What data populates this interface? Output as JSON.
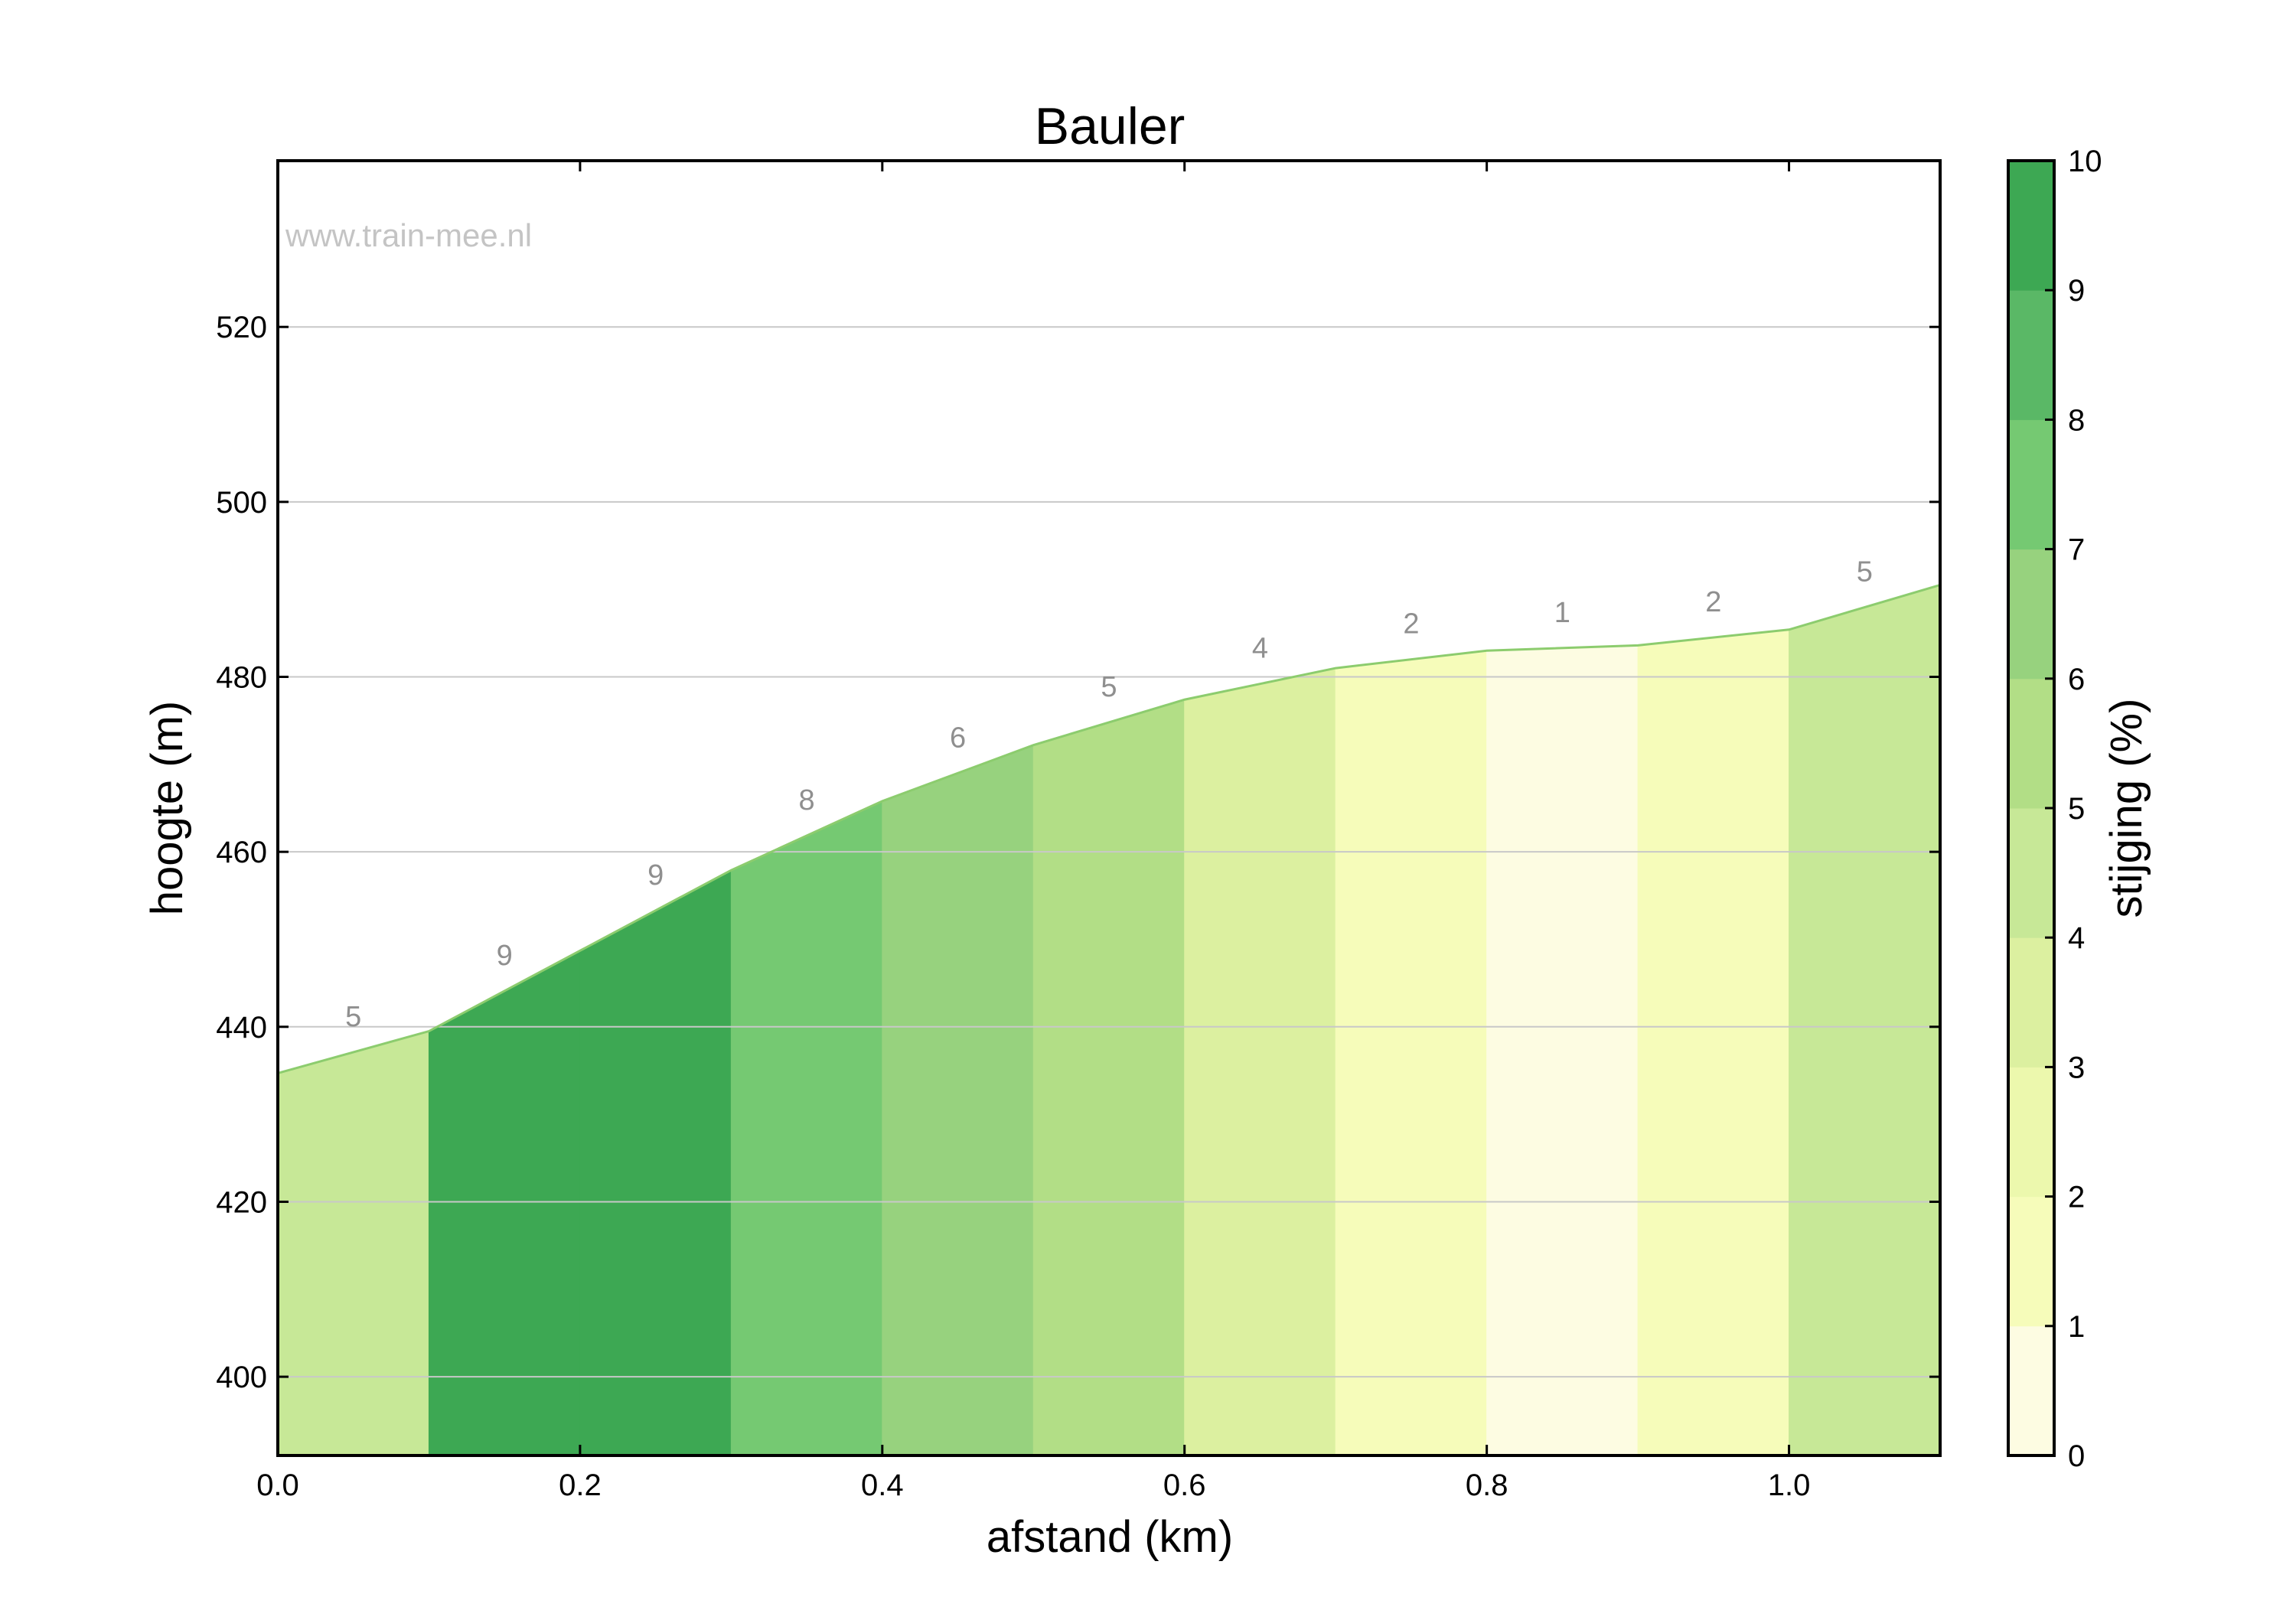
{
  "chart_data": {
    "type": "area",
    "title": "Bauler",
    "watermark": "www.train-mee.nl",
    "xlabel": "afstand (km)",
    "ylabel": "hoogte (m)",
    "xlim": [
      0.0,
      1.1
    ],
    "ylim": [
      391,
      539
    ],
    "xticks": [
      0.0,
      0.2,
      0.4,
      0.6,
      0.8,
      1.0
    ],
    "xtick_labels": [
      "0.0",
      "0.2",
      "0.4",
      "0.6",
      "0.8",
      "1.0"
    ],
    "yticks": [
      400,
      420,
      440,
      460,
      480,
      500,
      520
    ],
    "ytick_labels": [
      "400",
      "420",
      "440",
      "460",
      "480",
      "500",
      "520"
    ],
    "grid": "horizontal",
    "profile": {
      "x": [
        0.0,
        0.1,
        0.2,
        0.3,
        0.4,
        0.5,
        0.6,
        0.7,
        0.8,
        0.9,
        1.0,
        1.1
      ],
      "y": [
        434.7,
        439.5,
        448.7,
        457.9,
        465.8,
        472.2,
        477.4,
        481.0,
        483.0,
        483.6,
        485.4,
        490.5
      ]
    },
    "segments": [
      {
        "x0": 0.0,
        "x1": 0.1,
        "gradient": 5,
        "label": "5",
        "color": "#c7e897"
      },
      {
        "x0": 0.1,
        "x1": 0.2,
        "gradient": 9,
        "label": "9",
        "color": "#3da853"
      },
      {
        "x0": 0.2,
        "x1": 0.3,
        "gradient": 9,
        "label": "9",
        "color": "#3da853"
      },
      {
        "x0": 0.3,
        "x1": 0.4,
        "gradient": 8,
        "label": "8",
        "color": "#75c972"
      },
      {
        "x0": 0.4,
        "x1": 0.5,
        "gradient": 6,
        "label": "6",
        "color": "#97d27e"
      },
      {
        "x0": 0.5,
        "x1": 0.6,
        "gradient": 5,
        "label": "5",
        "color": "#b2de86"
      },
      {
        "x0": 0.6,
        "x1": 0.7,
        "gradient": 4,
        "label": "4",
        "color": "#dcf0a0"
      },
      {
        "x0": 0.7,
        "x1": 0.8,
        "gradient": 2,
        "label": "2",
        "color": "#f6fcba"
      },
      {
        "x0": 0.8,
        "x1": 0.9,
        "gradient": 1,
        "label": "1",
        "color": "#fdfce2"
      },
      {
        "x0": 0.9,
        "x1": 1.0,
        "gradient": 2,
        "label": "2",
        "color": "#f6fcba"
      },
      {
        "x0": 1.0,
        "x1": 1.1,
        "gradient": 5,
        "label": "5",
        "color": "#c7e897"
      }
    ],
    "profile_line_color": "#8ccc6e",
    "colorbar": {
      "label": "stijging (%)",
      "range": [
        0,
        10
      ],
      "ticks": [
        0,
        1,
        2,
        3,
        4,
        5,
        6,
        7,
        8,
        9,
        10
      ],
      "tick_labels": [
        "0",
        "1",
        "2",
        "3",
        "4",
        "5",
        "6",
        "7",
        "8",
        "9",
        "10"
      ],
      "colors": [
        "#fdfce2",
        "#f6fcba",
        "#ecf8ad",
        "#dcf0a0",
        "#c7e897",
        "#b2de86",
        "#97d27e",
        "#75c972",
        "#5ab866",
        "#3da853"
      ]
    }
  }
}
